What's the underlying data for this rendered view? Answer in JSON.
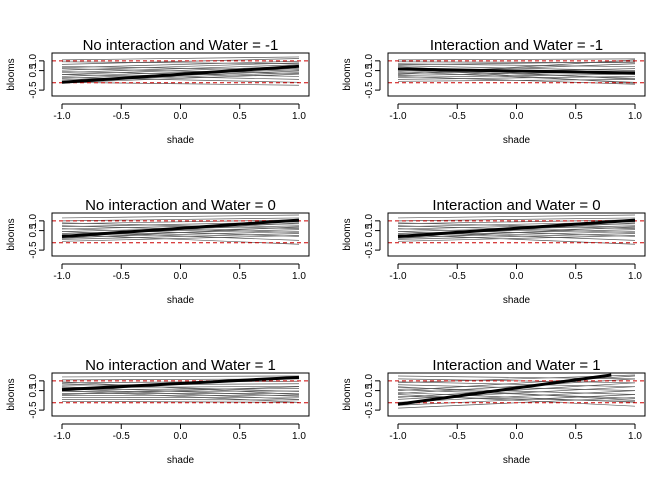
{
  "chart_data": [
    {
      "type": "line",
      "title": "No interaction and Water = -1",
      "xlabel": "shade",
      "ylabel": "blooms",
      "xlim": [
        -1,
        1
      ],
      "ylim": [
        -0.7,
        1.3
      ],
      "xticks": [
        -1.0,
        -0.5,
        0.0,
        0.5,
        1.0
      ],
      "xtick_labels": [
        "-1.0",
        "-0.5",
        "0.0",
        "0.5",
        "1.0"
      ],
      "yticks": [
        -0.5,
        0.5,
        1.0
      ],
      "ytick_labels": [
        "-0.5",
        "0.5",
        "1.0"
      ],
      "ref_lines": [
        -0.12,
        1.0
      ],
      "mean_line": [
        [
          -1,
          -0.1
        ],
        [
          1,
          0.72
        ]
      ],
      "samples": [
        [
          0.82,
          1.12
        ],
        [
          0.65,
          0.98
        ],
        [
          0.52,
          0.9
        ],
        [
          0.4,
          0.8
        ],
        [
          0.3,
          0.72
        ],
        [
          0.2,
          0.62
        ],
        [
          0.1,
          0.55
        ],
        [
          0.02,
          0.48
        ],
        [
          -0.05,
          0.4
        ],
        [
          -0.12,
          0.32
        ],
        [
          0.72,
          0.52
        ],
        [
          0.6,
          0.35
        ],
        [
          0.45,
          0.2
        ],
        [
          0.3,
          0.05
        ],
        [
          0.15,
          -0.1
        ],
        [
          -0.1,
          -0.25
        ],
        [
          1.05,
          1.2
        ],
        [
          0.95,
          0.85
        ]
      ]
    },
    {
      "type": "line",
      "title": "Interaction and Water = -1",
      "xlabel": "shade",
      "ylabel": "blooms",
      "xlim": [
        -1,
        1
      ],
      "ylim": [
        -0.7,
        1.3
      ],
      "xticks": [
        -1.0,
        -0.5,
        0.0,
        0.5,
        1.0
      ],
      "xtick_labels": [
        "-1.0",
        "-0.5",
        "0.0",
        "0.5",
        "1.0"
      ],
      "yticks": [
        -0.5,
        0.5,
        1.0
      ],
      "ytick_labels": [
        "-0.5",
        "0.5",
        "1.0"
      ],
      "ref_lines": [
        -0.12,
        1.0
      ],
      "mean_line": [
        [
          -1,
          0.58
        ],
        [
          1,
          0.38
        ]
      ],
      "samples": [
        [
          1.05,
          1.1
        ],
        [
          0.95,
          0.9
        ],
        [
          0.85,
          0.7
        ],
        [
          0.75,
          0.5
        ],
        [
          0.65,
          0.3
        ],
        [
          0.55,
          0.1
        ],
        [
          0.45,
          -0.1
        ],
        [
          0.35,
          0.6
        ],
        [
          0.25,
          0.45
        ],
        [
          0.15,
          0.32
        ],
        [
          0.05,
          0.2
        ],
        [
          -0.05,
          0.05
        ],
        [
          0.6,
          -0.15
        ],
        [
          0.7,
          0.05
        ],
        [
          0.4,
          0.85
        ],
        [
          0.3,
          1.05
        ],
        [
          0.8,
          0.95
        ],
        [
          0.2,
          -0.2
        ]
      ]
    },
    {
      "type": "line",
      "title": "No interaction and Water = 0",
      "xlabel": "shade",
      "ylabel": "blooms",
      "xlim": [
        -1,
        1
      ],
      "ylim": [
        -0.7,
        1.3
      ],
      "xticks": [
        -1.0,
        -0.5,
        0.0,
        0.5,
        1.0
      ],
      "xtick_labels": [
        "-1.0",
        "-0.5",
        "0.0",
        "0.5",
        "1.0"
      ],
      "yticks": [
        -0.5,
        0.5,
        1.0
      ],
      "ytick_labels": [
        "-0.5",
        "0.5",
        "1.0"
      ],
      "ref_lines": [
        -0.12,
        1.0
      ],
      "mean_line": [
        [
          -1,
          0.2
        ],
        [
          1,
          1.04
        ]
      ],
      "samples": [
        [
          1.15,
          1.3
        ],
        [
          1.0,
          1.15
        ],
        [
          0.85,
          1.05
        ],
        [
          0.7,
          0.95
        ],
        [
          0.58,
          0.85
        ],
        [
          0.45,
          0.75
        ],
        [
          0.35,
          0.65
        ],
        [
          0.25,
          0.55
        ],
        [
          0.15,
          0.45
        ],
        [
          0.05,
          0.35
        ],
        [
          -0.05,
          0.25
        ],
        [
          0.9,
          0.6
        ],
        [
          0.75,
          0.4
        ],
        [
          0.6,
          0.2
        ],
        [
          0.45,
          0.0
        ],
        [
          0.3,
          -0.2
        ],
        [
          0.2,
          0.9
        ],
        [
          0.1,
          0.7
        ]
      ]
    },
    {
      "type": "line",
      "title": "Interaction and Water = 0",
      "xlabel": "shade",
      "ylabel": "blooms",
      "xlim": [
        -1,
        1
      ],
      "ylim": [
        -0.7,
        1.3
      ],
      "xticks": [
        -1.0,
        -0.5,
        0.0,
        0.5,
        1.0
      ],
      "xtick_labels": [
        "-1.0",
        "-0.5",
        "0.0",
        "0.5",
        "1.0"
      ],
      "yticks": [
        -0.5,
        0.5,
        1.0
      ],
      "ytick_labels": [
        "-0.5",
        "0.5",
        "1.0"
      ],
      "ref_lines": [
        -0.12,
        1.0
      ],
      "mean_line": [
        [
          -1,
          0.2
        ],
        [
          1,
          1.04
        ]
      ],
      "samples": [
        [
          1.15,
          1.3
        ],
        [
          1.0,
          1.15
        ],
        [
          0.85,
          1.05
        ],
        [
          0.7,
          0.95
        ],
        [
          0.58,
          0.85
        ],
        [
          0.45,
          0.75
        ],
        [
          0.35,
          0.65
        ],
        [
          0.25,
          0.55
        ],
        [
          0.15,
          0.45
        ],
        [
          0.05,
          0.35
        ],
        [
          -0.05,
          0.25
        ],
        [
          0.9,
          0.6
        ],
        [
          0.75,
          0.4
        ],
        [
          0.6,
          0.2
        ],
        [
          0.45,
          0.0
        ],
        [
          0.3,
          -0.2
        ],
        [
          0.2,
          0.9
        ],
        [
          0.1,
          0.7
        ]
      ]
    },
    {
      "type": "line",
      "title": "No interaction and Water = 1",
      "xlabel": "shade",
      "ylabel": "blooms",
      "xlim": [
        -1,
        1
      ],
      "ylim": [
        -0.7,
        1.3
      ],
      "xticks": [
        -1.0,
        -0.5,
        0.0,
        0.5,
        1.0
      ],
      "xtick_labels": [
        "-1.0",
        "-0.5",
        "0.0",
        "0.5",
        "1.0"
      ],
      "yticks": [
        -0.5,
        0.5,
        1.0
      ],
      "ytick_labels": [
        "-0.5",
        "0.5",
        "1.0"
      ],
      "ref_lines": [
        -0.12,
        1.0
      ],
      "mean_line": [
        [
          -1,
          0.55
        ],
        [
          1,
          1.18
        ]
      ],
      "samples": [
        [
          1.2,
          1.25
        ],
        [
          1.05,
          1.1
        ],
        [
          0.9,
          0.98
        ],
        [
          0.78,
          0.85
        ],
        [
          0.65,
          0.72
        ],
        [
          0.55,
          0.6
        ],
        [
          0.45,
          0.48
        ],
        [
          0.35,
          0.36
        ],
        [
          0.25,
          0.26
        ],
        [
          0.15,
          0.14
        ],
        [
          0.05,
          0.02
        ],
        [
          -0.05,
          -0.1
        ],
        [
          0.7,
          0.2
        ],
        [
          0.6,
          0.05
        ],
        [
          0.5,
          -0.1
        ],
        [
          0.3,
          0.7
        ],
        [
          0.85,
          0.45
        ],
        [
          0.95,
          0.3
        ]
      ]
    },
    {
      "type": "line",
      "title": "Interaction and Water = 1",
      "xlabel": "shade",
      "ylabel": "blooms",
      "xlim": [
        -1,
        1
      ],
      "ylim": [
        -0.7,
        1.3
      ],
      "xticks": [
        -1.0,
        -0.5,
        0.0,
        0.5,
        1.0
      ],
      "xtick_labels": [
        "-1.0",
        "-0.5",
        "0.0",
        "0.5",
        "1.0"
      ],
      "yticks": [
        -0.5,
        0.5,
        1.0
      ],
      "ytick_labels": [
        "-0.5",
        "0.5",
        "1.0"
      ],
      "ref_lines": [
        -0.12,
        1.0
      ],
      "mean_line": [
        [
          -1,
          -0.2
        ],
        [
          0.8,
          1.3
        ]
      ],
      "samples": [
        [
          1.25,
          1.1
        ],
        [
          1.1,
          0.9
        ],
        [
          0.95,
          0.7
        ],
        [
          0.8,
          0.5
        ],
        [
          0.65,
          0.3
        ],
        [
          0.55,
          0.1
        ],
        [
          0.4,
          -0.1
        ],
        [
          0.3,
          -0.3
        ],
        [
          0.15,
          0.9
        ],
        [
          0.05,
          0.7
        ],
        [
          -0.1,
          0.5
        ],
        [
          -0.25,
          0.3
        ],
        [
          0.5,
          1.25
        ],
        [
          0.35,
          1.1
        ],
        [
          0.2,
          -0.05
        ],
        [
          0.7,
          0.0
        ],
        [
          -0.4,
          0.15
        ],
        [
          0.9,
          1.3
        ]
      ]
    }
  ],
  "colors": {
    "background": "#ffffff",
    "axis": "#000000",
    "sample_line": "#5a5a5a",
    "mean_line": "#000000",
    "ref_line": "#cc0000"
  }
}
